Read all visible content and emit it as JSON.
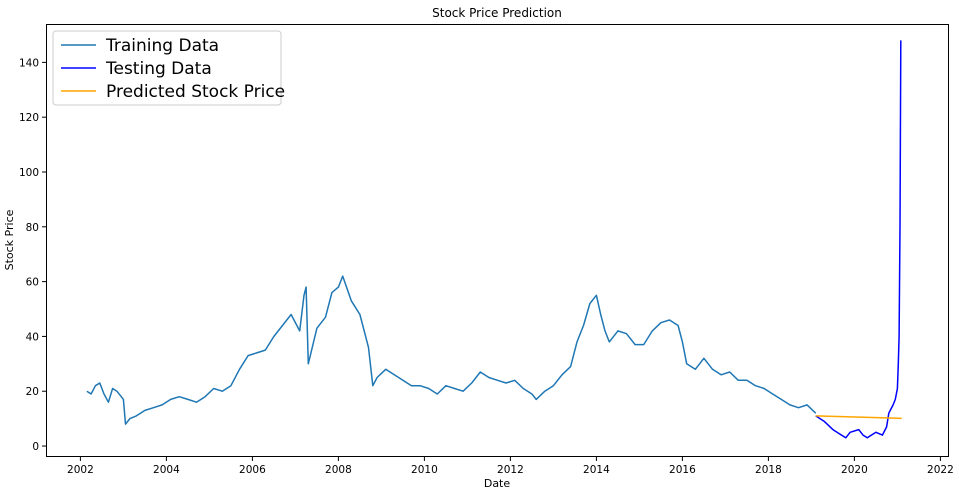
{
  "chart_data": {
    "type": "line",
    "title": "Stock Price Prediction",
    "xlabel": "Date",
    "ylabel": "Stock Price",
    "xlim": [
      2001.2,
      2022.2
    ],
    "ylim": [
      -4,
      154
    ],
    "x_ticks": [
      2002,
      2004,
      2006,
      2008,
      2010,
      2012,
      2014,
      2016,
      2018,
      2020,
      2022
    ],
    "y_ticks": [
      0,
      20,
      40,
      60,
      80,
      100,
      120,
      140
    ],
    "grid": false,
    "legend_position": "top-left",
    "series": [
      {
        "name": "Training Data",
        "color": "#1f77b4",
        "x": [
          2002.15,
          2002.25,
          2002.35,
          2002.45,
          2002.55,
          2002.65,
          2002.75,
          2002.85,
          2002.95,
          2003.0,
          2003.05,
          2003.1,
          2003.15,
          2003.3,
          2003.5,
          2003.7,
          2003.9,
          2004.1,
          2004.3,
          2004.5,
          2004.7,
          2004.9,
          2005.1,
          2005.3,
          2005.5,
          2005.7,
          2005.9,
          2006.1,
          2006.3,
          2006.5,
          2006.7,
          2006.9,
          2007.1,
          2007.2,
          2007.25,
          2007.3,
          2007.5,
          2007.7,
          2007.85,
          2008.0,
          2008.1,
          2008.3,
          2008.5,
          2008.7,
          2008.8,
          2008.9,
          2009.1,
          2009.3,
          2009.5,
          2009.7,
          2009.9,
          2010.1,
          2010.3,
          2010.5,
          2010.7,
          2010.9,
          2011.1,
          2011.3,
          2011.5,
          2011.7,
          2011.9,
          2012.1,
          2012.3,
          2012.5,
          2012.6,
          2012.8,
          2013.0,
          2013.2,
          2013.4,
          2013.55,
          2013.7,
          2013.85,
          2014.0,
          2014.1,
          2014.2,
          2014.3,
          2014.5,
          2014.7,
          2014.9,
          2015.1,
          2015.3,
          2015.5,
          2015.7,
          2015.9,
          2016.0,
          2016.1,
          2016.3,
          2016.5,
          2016.7,
          2016.9,
          2017.1,
          2017.3,
          2017.5,
          2017.7,
          2017.9,
          2018.1,
          2018.3,
          2018.5,
          2018.7,
          2018.9,
          2019.1
        ],
        "y": [
          20,
          19,
          22,
          23,
          19,
          16,
          21,
          20,
          18,
          17,
          8,
          9,
          10,
          11,
          13,
          14,
          15,
          17,
          18,
          17,
          16,
          18,
          21,
          20,
          22,
          28,
          33,
          34,
          35,
          40,
          44,
          48,
          42,
          55,
          58,
          30,
          43,
          47,
          56,
          58,
          62,
          53,
          48,
          36,
          22,
          25,
          28,
          26,
          24,
          22,
          22,
          21,
          19,
          22,
          21,
          20,
          23,
          27,
          25,
          24,
          23,
          24,
          21,
          19,
          17,
          20,
          22,
          26,
          29,
          38,
          44,
          52,
          55,
          48,
          42,
          38,
          42,
          41,
          37,
          37,
          42,
          45,
          46,
          44,
          38,
          30,
          28,
          32,
          28,
          26,
          27,
          24,
          24,
          22,
          21,
          19,
          17,
          15,
          14,
          15,
          12
        ]
      },
      {
        "name": "Testing Data",
        "color": "#0000ff",
        "x": [
          2019.1,
          2019.3,
          2019.5,
          2019.7,
          2019.8,
          2019.9,
          2020.1,
          2020.2,
          2020.3,
          2020.5,
          2020.65,
          2020.75,
          2020.8,
          2020.9,
          2020.95,
          2021.0,
          2021.02,
          2021.04,
          2021.06,
          2021.08
        ],
        "y": [
          11,
          9,
          6,
          4,
          3,
          5,
          6,
          4,
          3,
          5,
          4,
          7,
          12,
          15,
          17,
          21,
          30,
          40,
          80,
          148
        ]
      },
      {
        "name": "Predicted Stock Price",
        "color": "#ffa500",
        "x": [
          2019.1,
          2021.1
        ],
        "y": [
          11.0,
          10.1
        ]
      }
    ]
  }
}
